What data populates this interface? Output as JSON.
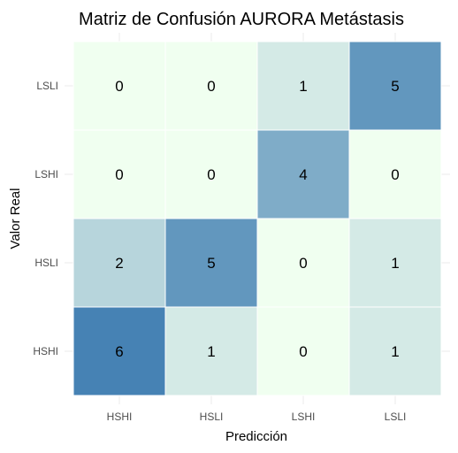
{
  "chart_data": {
    "type": "heatmap",
    "title": "Matriz de Confusión AURORA Metástasis",
    "xlabel": "Predicción",
    "ylabel": "Valor Real",
    "x_categories": [
      "HSHI",
      "HSLI",
      "LSHI",
      "LSLI"
    ],
    "y_categories": [
      "HSHI",
      "HSLI",
      "LSHI",
      "LSLI"
    ],
    "values": [
      [
        6,
        1,
        0,
        1
      ],
      [
        2,
        5,
        0,
        1
      ],
      [
        0,
        0,
        4,
        0
      ],
      [
        0,
        0,
        1,
        5
      ]
    ],
    "color_low": "#f0fff0",
    "color_high": "#4682b4",
    "value_range": [
      0,
      6
    ],
    "grid": true,
    "legend": "none"
  }
}
